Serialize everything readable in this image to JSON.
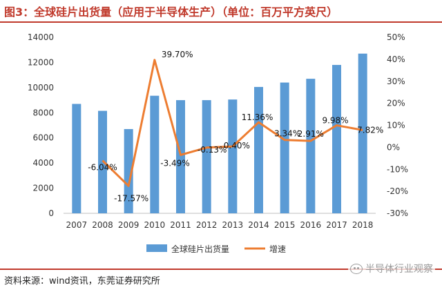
{
  "header": {
    "title": "图3：全球硅片出货量（应用于半导体生产）（单位：百万平方英尺）"
  },
  "footer": {
    "source": "资料来源：wind资讯，东莞证券研究所",
    "watermark": "半导体行业观察"
  },
  "chart_data": {
    "type": "bar",
    "categories": [
      "2007",
      "2008",
      "2009",
      "2010",
      "2011",
      "2012",
      "2013",
      "2014",
      "2015",
      "2016",
      "2017",
      "2018"
    ],
    "series": [
      {
        "name": "全球硅片出货量",
        "type": "bar",
        "axis": "left",
        "color": "#5b9bd5",
        "values": [
          8700,
          8150,
          6700,
          9350,
          9000,
          9000,
          9050,
          10050,
          10400,
          10700,
          11800,
          12700
        ]
      },
      {
        "name": "增速",
        "type": "line",
        "axis": "right",
        "color": "#ed7d31",
        "values": [
          null,
          -6.04,
          -17.57,
          39.7,
          -3.49,
          -0.13,
          0.4,
          11.36,
          3.34,
          2.91,
          9.98,
          7.82
        ],
        "labels": [
          "",
          "-6.04%",
          "-17.57%",
          "39.70%",
          "-3.49%",
          "-0.13%",
          "0.40%",
          "11.36%",
          "3.34%",
          "2.91%",
          "9.98%",
          "7.82%"
        ]
      }
    ],
    "y_left": {
      "ylim": [
        0,
        14000
      ],
      "ticks": [
        0,
        2000,
        4000,
        6000,
        8000,
        10000,
        12000,
        14000
      ],
      "tick_labels": [
        "0",
        "2000",
        "4000",
        "6000",
        "8000",
        "10000",
        "12000",
        "14000"
      ]
    },
    "y_right": {
      "ylim": [
        -30,
        50
      ],
      "ticks": [
        -30,
        -20,
        -10,
        0,
        10,
        20,
        30,
        40,
        50
      ],
      "tick_labels": [
        "-30%",
        "-20%",
        "-10%",
        "0%",
        "10%",
        "20%",
        "30%",
        "40%",
        "50%"
      ]
    },
    "grid": false,
    "legend": {
      "position": "bottom",
      "entries": [
        "全球硅片出货量",
        "增速"
      ]
    }
  }
}
